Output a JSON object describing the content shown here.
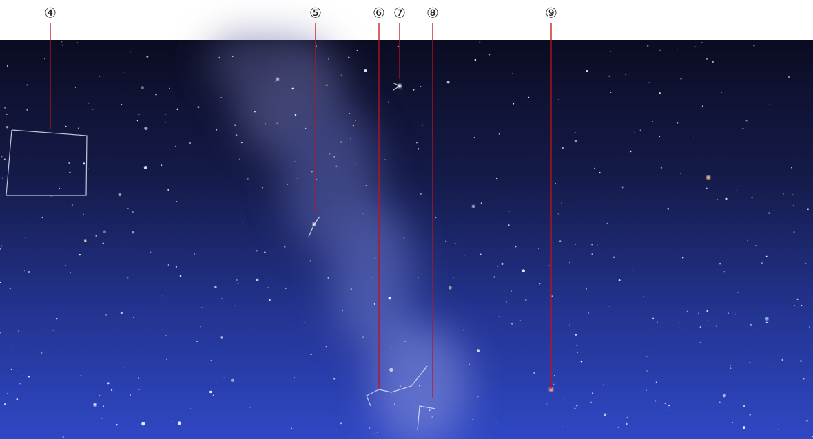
{
  "labels": [
    "④",
    "⑤",
    "⑥",
    "⑦",
    "⑧",
    "⑨"
  ]
}
